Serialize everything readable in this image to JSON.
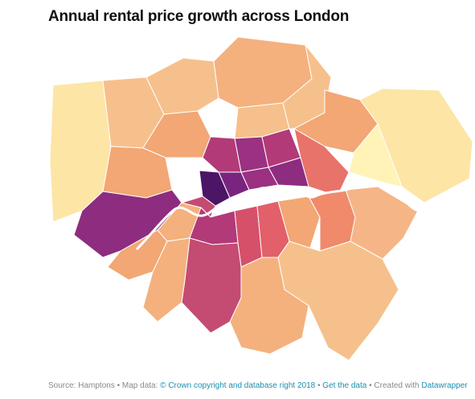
{
  "header": {
    "title": "Annual rental price growth across London"
  },
  "footer": {
    "source": "Source: Hamptons",
    "separator": "•",
    "map_data": "Map data:",
    "copyright": "© Crown copyright and database right 2018",
    "get_data": "Get the data",
    "created_with": "Created with",
    "tool": "Datawrapper"
  }
}
